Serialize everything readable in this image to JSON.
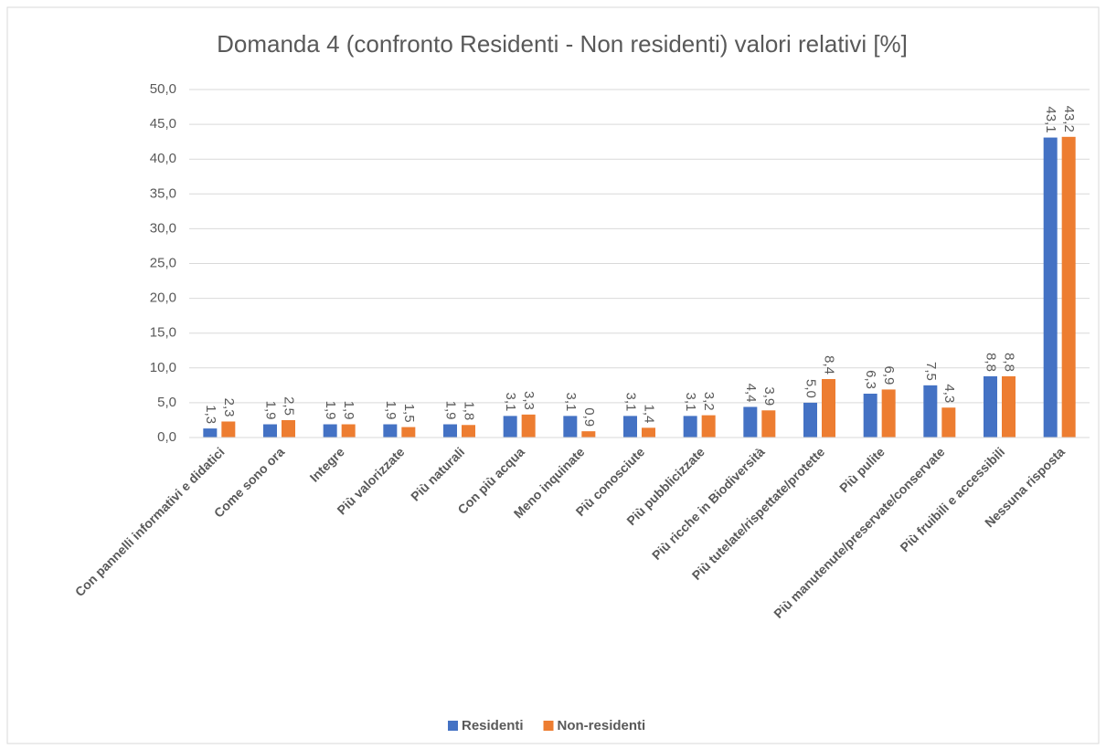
{
  "chart_data": {
    "type": "bar",
    "title": "Domanda 4 (confronto Residenti - Non residenti) valori relativi [%]",
    "categories": [
      "Con pannelli informativi e didatici",
      "Come sono ora",
      "Integre",
      "Più valorizzate",
      "Più naturali",
      "Con più acqua",
      "Meno inquinate",
      "Più conosciute",
      "Più pubblicizzate",
      "Più ricche in Biodiversità",
      "Più tutelate/rispettate/protette",
      "Più pulite",
      "Più manutenute/preservate/conservate",
      "Più fruibili e accessibili",
      "Nessuna risposta"
    ],
    "series": [
      {
        "name": "Residenti",
        "color": "#4472c4",
        "values": [
          1.3,
          1.9,
          1.9,
          1.9,
          1.9,
          3.1,
          3.1,
          3.1,
          3.1,
          4.4,
          5.0,
          6.3,
          7.5,
          8.8,
          43.1
        ],
        "value_labels": [
          "1,3",
          "1,9",
          "1,9",
          "1,9",
          "1,9",
          "3,1",
          "3,1",
          "3,1",
          "3,1",
          "4,4",
          "5,0",
          "6,3",
          "7,5",
          "8,8",
          "43,1"
        ]
      },
      {
        "name": "Non-residenti",
        "color": "#ed7d31",
        "values": [
          2.3,
          2.5,
          1.9,
          1.5,
          1.8,
          3.3,
          0.9,
          1.4,
          3.2,
          3.9,
          8.4,
          6.9,
          4.3,
          8.8,
          43.2
        ],
        "value_labels": [
          "2,3",
          "2,5",
          "1,9",
          "1,5",
          "1,8",
          "3,3",
          "0,9",
          "1,4",
          "3,2",
          "3,9",
          "8,4",
          "6,9",
          "4,3",
          "8,8",
          "43,2"
        ]
      }
    ],
    "ylim": [
      0,
      50
    ],
    "yticks": [
      {
        "value": 0,
        "label": "0,0"
      },
      {
        "value": 5,
        "label": "5,0"
      },
      {
        "value": 10,
        "label": "10,0"
      },
      {
        "value": 15,
        "label": "15,0"
      },
      {
        "value": 20,
        "label": "20,0"
      },
      {
        "value": 25,
        "label": "25,0"
      },
      {
        "value": 30,
        "label": "30,0"
      },
      {
        "value": 35,
        "label": "35,0"
      },
      {
        "value": 40,
        "label": "40,0"
      },
      {
        "value": 45,
        "label": "45,0"
      },
      {
        "value": 50,
        "label": "50,0"
      }
    ],
    "grid": true,
    "legend": "bottom"
  }
}
